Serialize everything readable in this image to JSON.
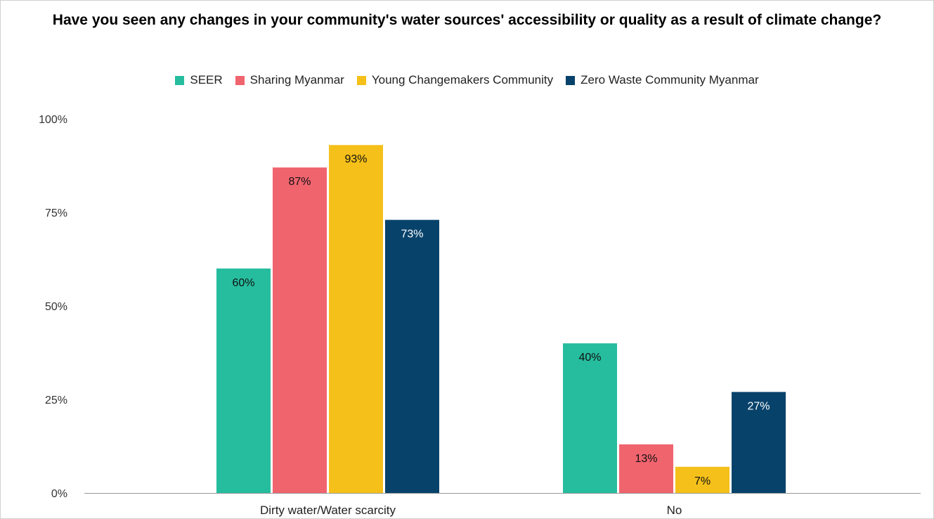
{
  "chart_data": {
    "type": "bar",
    "title": "Have you seen any changes in your community's water sources' accessibility or quality as a result of climate change?",
    "categories": [
      "Dirty water/Water scarcity",
      "No"
    ],
    "series": [
      {
        "name": "SEER",
        "color": "#26bd9e",
        "values": [
          60,
          40
        ],
        "labels": [
          "60%",
          "40%"
        ],
        "label_color": "#111111"
      },
      {
        "name": "Sharing Myanmar",
        "color": "#f0646e",
        "values": [
          87,
          13
        ],
        "labels": [
          "87%",
          "13%"
        ],
        "label_color": "#111111"
      },
      {
        "name": "Young Changemakers Community",
        "color": "#f5c01a",
        "values": [
          93,
          7
        ],
        "labels": [
          "93%",
          "7%"
        ],
        "label_color": "#111111"
      },
      {
        "name": "Zero Waste Community Myanmar",
        "color": "#07426b",
        "values": [
          73,
          27
        ],
        "labels": [
          "73%",
          "27%"
        ],
        "label_color": "#ffffff"
      }
    ],
    "yticks": [
      {
        "value": 0,
        "label": "0%"
      },
      {
        "value": 25,
        "label": "25%"
      },
      {
        "value": 50,
        "label": "50%"
      },
      {
        "value": 75,
        "label": "75%"
      },
      {
        "value": 100,
        "label": "100%"
      }
    ],
    "ylim": [
      0,
      100
    ],
    "grid": false,
    "legend_position": "top"
  }
}
